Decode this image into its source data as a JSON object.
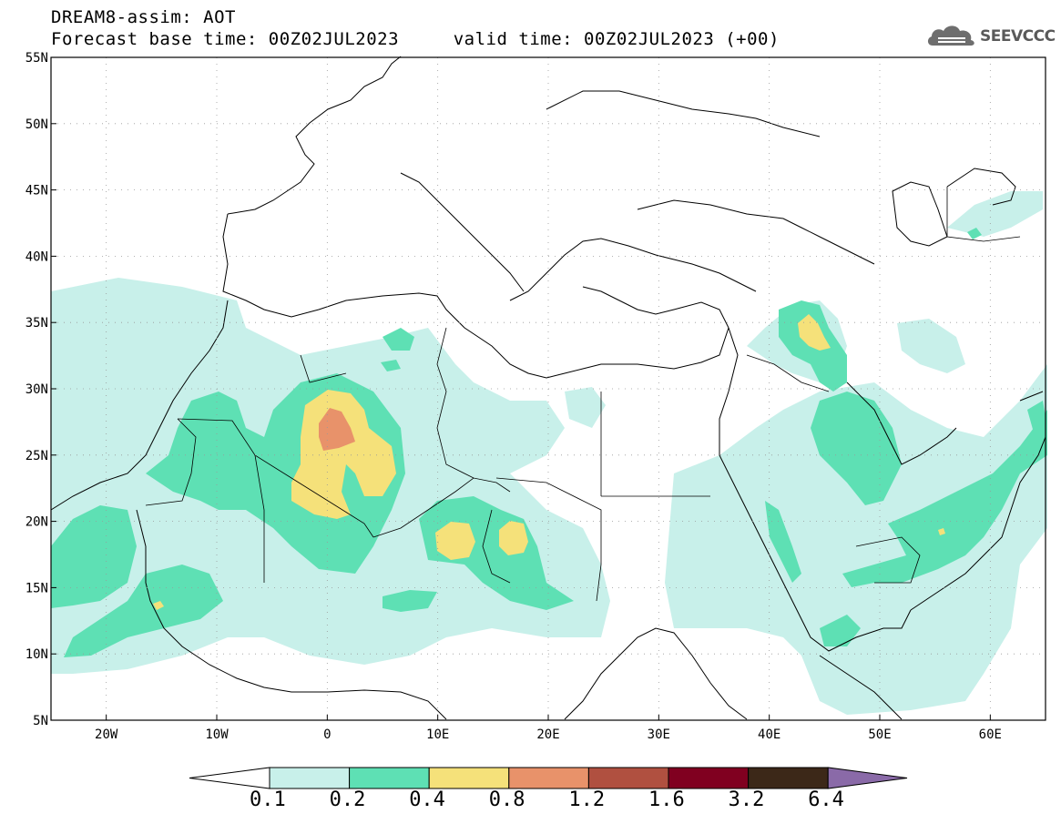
{
  "header": {
    "title_line1": "DREAM8-assim: AOT",
    "title_line2": "Forecast base time: 00Z02JUL2023     valid time: 00Z02JUL2023 (+00)",
    "brand": "SEEVCCC"
  },
  "map": {
    "lon_ticks": [
      "20W",
      "10W",
      "0",
      "10E",
      "20E",
      "30E",
      "40E",
      "50E",
      "60E"
    ],
    "lat_ticks": [
      "55N",
      "50N",
      "45N",
      "40N",
      "35N",
      "30N",
      "25N",
      "20N",
      "15N",
      "10N",
      "5N"
    ],
    "lon_range": [
      -25,
      65
    ],
    "lat_range": [
      5,
      55
    ]
  },
  "colorbar": {
    "levels": [
      "0.1",
      "0.2",
      "0.4",
      "0.8",
      "1.2",
      "1.6",
      "3.2",
      "6.4"
    ],
    "colors": [
      "#ffffff",
      "#c8f0ea",
      "#5ee0b4",
      "#f5e17a",
      "#e8926a",
      "#b05040",
      "#800020",
      "#3c2818",
      "#8a6aa8"
    ]
  },
  "fill_colors": {
    "light_cyan": "#c8f0ea",
    "green": "#5ee0b4",
    "yellow": "#f5e17a",
    "salmon": "#e8926a"
  }
}
